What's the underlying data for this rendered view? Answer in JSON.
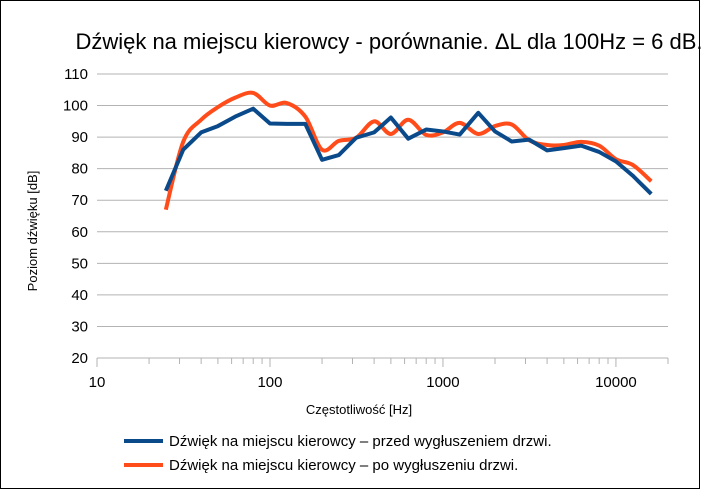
{
  "chart_data": {
    "type": "line",
    "title": "Dźwięk na miejscu kierowcy - porównanie. ΔL dla 100Hz = 6 dB.",
    "xlabel": "Częstotliwość [Hz]",
    "ylabel": "Poziom dźwięku [dB]",
    "x_scale": "log",
    "xlim": [
      10,
      20000
    ],
    "ylim": [
      20,
      110
    ],
    "x_ticks": [
      10,
      100,
      1000,
      10000
    ],
    "x_tick_labels": [
      "10",
      "100",
      "1000",
      "10000"
    ],
    "y_ticks": [
      20,
      30,
      40,
      50,
      60,
      70,
      80,
      90,
      100,
      110
    ],
    "y_tick_labels": [
      "20",
      "30",
      "40",
      "50",
      "60",
      "70",
      "80",
      "90",
      "100",
      "110"
    ],
    "grid": "horizontal",
    "legend_position": "bottom",
    "series": [
      {
        "name": "Dźwięk na miejscu kierowcy – przed wygłuszeniem drzwi.",
        "color": "#0a4a8a",
        "x": [
          25,
          31.5,
          40,
          50,
          63,
          80,
          100,
          125,
          160,
          200,
          250,
          315,
          400,
          500,
          630,
          800,
          1000,
          1250,
          1600,
          2000,
          2500,
          3150,
          4000,
          5000,
          6300,
          8000,
          10000,
          12500,
          16000
        ],
        "y": [
          73,
          86,
          91.5,
          93.5,
          96.5,
          99,
          94.3,
          94.2,
          94.2,
          82.8,
          84.3,
          89.8,
          91.5,
          96.2,
          89.5,
          92.4,
          91.8,
          90.8,
          97.7,
          91.8,
          88.6,
          89.2,
          85.8,
          86.5,
          87.3,
          85.3,
          82.3,
          77.8,
          72
        ]
      },
      {
        "name": "Dźwięk na miejscu kierowcy – po wygłuszeniu drzwi.",
        "color": "#ff4c1a",
        "x": [
          25,
          31.5,
          40,
          50,
          63,
          80,
          100,
          125,
          160,
          200,
          250,
          315,
          400,
          500,
          630,
          800,
          1000,
          1250,
          1600,
          2000,
          2500,
          3150,
          4000,
          5000,
          6300,
          8000,
          10000,
          12500,
          16000
        ],
        "y": [
          67,
          88.5,
          95.5,
          99.5,
          102.5,
          104,
          100,
          100.8,
          96.5,
          86,
          88.8,
          89.8,
          95,
          91,
          95.5,
          90.7,
          91.5,
          94.5,
          91,
          93.5,
          94,
          89,
          87.5,
          87.5,
          88.5,
          87.3,
          83,
          81.2,
          76
        ]
      }
    ]
  }
}
